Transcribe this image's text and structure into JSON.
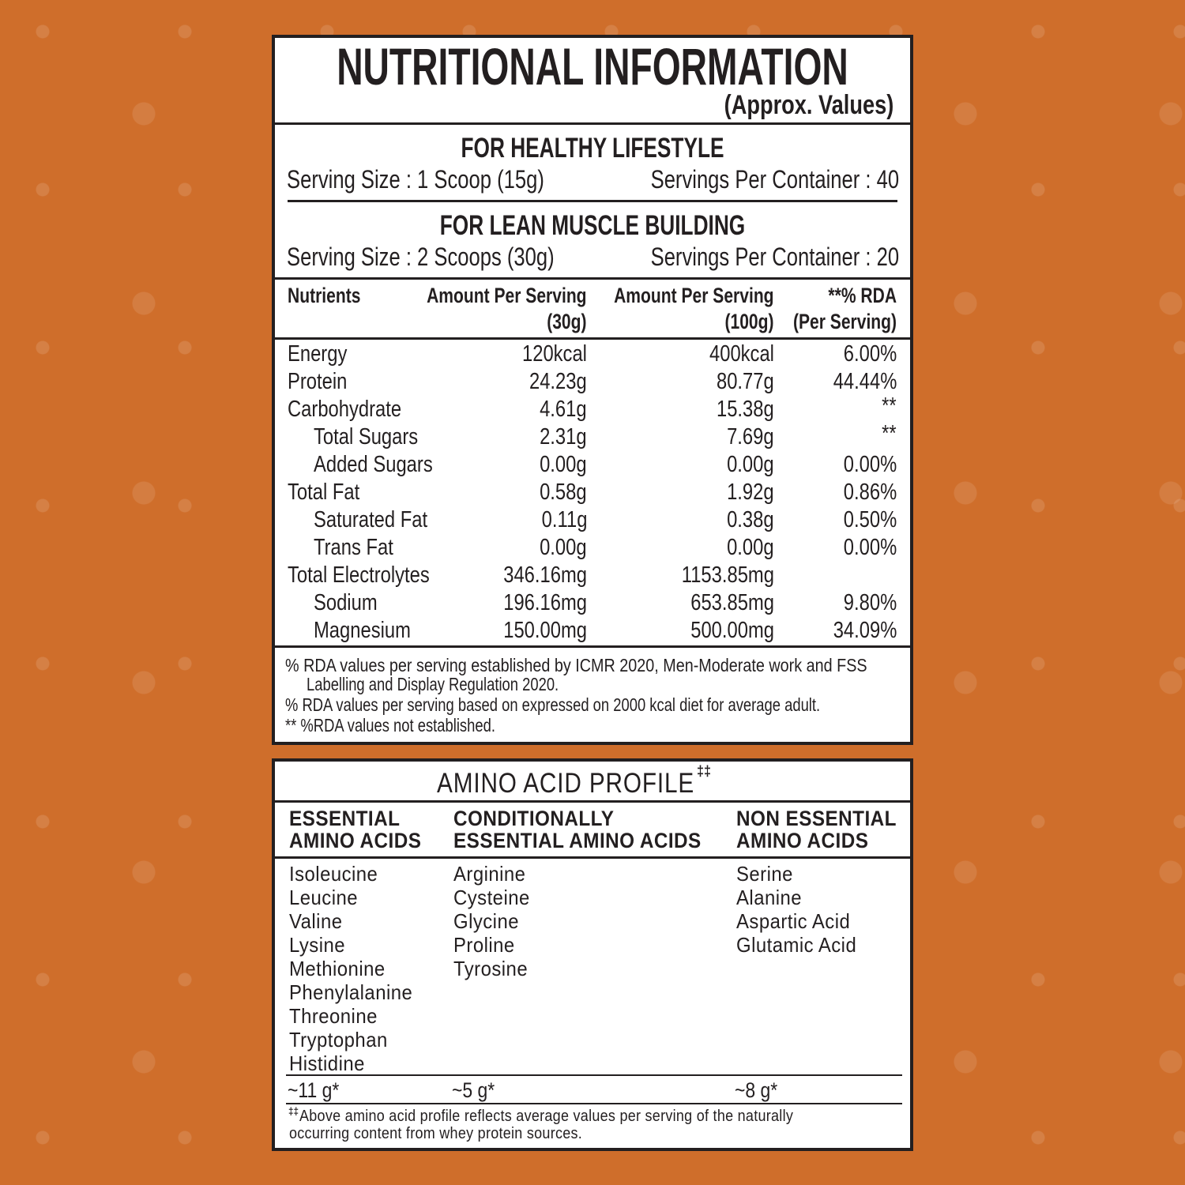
{
  "title": "NUTRITIONAL INFORMATION",
  "subtitle": "(Approx. Values)",
  "healthy": {
    "heading": "FOR HEALTHY LIFESTYLE",
    "serving_size": "Serving Size : 1 Scoop (15g)",
    "servings": "Servings Per Container : 40"
  },
  "lean": {
    "heading": "FOR LEAN MUSCLE BUILDING",
    "serving_size": "Serving Size : 2 Scoops (30g)",
    "servings": "Servings Per Container : 20"
  },
  "table": {
    "headers": {
      "c1": "Nutrients",
      "c2a": "Amount Per Serving",
      "c2b": "(30g)",
      "c3a": "Amount Per Serving",
      "c3b": "(100g)",
      "c4a": "**% RDA",
      "c4b": "(Per Serving)"
    },
    "rows": [
      {
        "name": "Energy",
        "indent": false,
        "a": "120kcal",
        "b": "400kcal",
        "rda": "6.00%"
      },
      {
        "name": "Protein",
        "indent": false,
        "a": "24.23g",
        "b": "80.77g",
        "rda": "44.44%"
      },
      {
        "name": "Carbohydrate",
        "indent": false,
        "a": "4.61g",
        "b": "15.38g",
        "rda": "**"
      },
      {
        "name": "Total Sugars",
        "indent": true,
        "a": "2.31g",
        "b": "7.69g",
        "rda": "**"
      },
      {
        "name": "Added Sugars",
        "indent": true,
        "a": "0.00g",
        "b": "0.00g",
        "rda": "0.00%"
      },
      {
        "name": "Total Fat",
        "indent": false,
        "a": "0.58g",
        "b": "1.92g",
        "rda": "0.86%"
      },
      {
        "name": "Saturated Fat",
        "indent": true,
        "a": "0.11g",
        "b": "0.38g",
        "rda": "0.50%"
      },
      {
        "name": "Trans Fat",
        "indent": true,
        "a": "0.00g",
        "b": "0.00g",
        "rda": "0.00%"
      },
      {
        "name": "Total Electrolytes",
        "indent": false,
        "a": "346.16mg",
        "b": "1153.85mg",
        "rda": ""
      },
      {
        "name": "Sodium",
        "indent": true,
        "a": "196.16mg",
        "b": "653.85mg",
        "rda": "9.80%"
      },
      {
        "name": "Magnesium",
        "indent": true,
        "a": "150.00mg",
        "b": "500.00mg",
        "rda": "34.09%"
      }
    ]
  },
  "footnotes": [
    "% RDA values per serving established by ICMR 2020, Men-Moderate work and FSS",
    "Labelling and Display Regulation 2020.",
    "% RDA values per serving based on expressed on 2000 kcal diet for average adult.",
    "** %RDA values not established."
  ],
  "amino": {
    "title": "AMINO ACID PROFILE",
    "title_mark": "‡‡",
    "columns": [
      {
        "h1": "ESSENTIAL",
        "h2": "AMINO ACIDS",
        "items": [
          "Isoleucine",
          "Leucine",
          "Valine",
          "Lysine",
          "Methionine",
          "Phenylalanine",
          "Threonine",
          "Tryptophan",
          "Histidine"
        ],
        "total": "~11 g*"
      },
      {
        "h1": "CONDITIONALLY",
        "h2": "ESSENTIAL AMINO ACIDS",
        "items": [
          "Arginine",
          "Cysteine",
          "Glycine",
          "Proline",
          "Tyrosine"
        ],
        "total": "~5 g*"
      },
      {
        "h1": "NON ESSENTIAL",
        "h2": "AMINO ACIDS",
        "items": [
          "Serine",
          "Alanine",
          "Aspartic Acid",
          "Glutamic Acid"
        ],
        "total": "~8 g*"
      }
    ],
    "note_mark": "‡‡",
    "note1": "Above amino acid profile reflects average values per serving of the naturally",
    "note2": "occurring content from whey protein sources."
  },
  "colors": {
    "background": "#cf6e2b",
    "ink": "#231f20",
    "panel": "#ffffff"
  }
}
